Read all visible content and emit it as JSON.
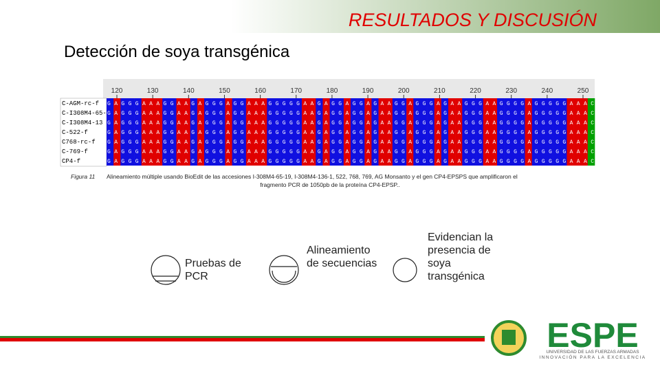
{
  "header": {
    "title": "RESULTADOS Y DISCUSIÓN",
    "subtitle": "Detección de soya transgénica"
  },
  "alignment": {
    "ruler": [
      "120",
      "130",
      "140",
      "150",
      "160",
      "170",
      "180",
      "190",
      "200",
      "210",
      "220",
      "230",
      "240",
      "250"
    ],
    "base_colors": {
      "A": "#e00000",
      "G": "#1010e0",
      "C": "#00a000",
      "T": "#000000"
    },
    "rows": [
      {
        "name": "C-AGM-rc-f",
        "sequence": "GAGGGAAAGGAAGAGGGAGGAAAGGGGGAAGAGGAGGAGAAGGAGGGAGAAGGGAAGGGGAGGGGGAAAC"
      },
      {
        "name": "C-I308M4-65-",
        "sequence": "GAGGGAAAGGAAGAGGGAGGAAAGGGGGAAGAGGAGGAGAAGGAGGGAGAAGGGAAGGGGAGGGGGAAAC"
      },
      {
        "name": "C-I308M4-13",
        "sequence": "GAGGGAAAGGAAGAGGGAGGAAAGGGGGAAGAGGAGGAGAAGGAGGGAGAAGGGAAGGGGAGGGGGAAAC"
      },
      {
        "name": "C-522-f",
        "sequence": "GAGGGAAAGGAAGAGGGAGGAAAGGGGGAAGAGGAGGAGAAGGAGGGAGAAGGGAAGGGGAGGGGGAAAC"
      },
      {
        "name": "C768-rc-f",
        "sequence": "GAGGGAAAGGAAGAGGGAGGAAAGGGGGAAGAGGAGGAGAAGGAGGGAGAAGGGAAGGGGAGGGGGAAAC"
      },
      {
        "name": "C-769-f",
        "sequence": "GAGGGAAAGGAAGAGGGAGGAAAGGGGGAAGAGGAGGAGAAGGAGGGAGAAGGGAAGGGGAGGGGGAAAC"
      },
      {
        "name": "CP4-f",
        "sequence": "GAGGGAAAGGAAGAGGGAGGAAAGGGGGAAGAGGAGGAGAAGGAGGGAGAAGGGAAGGGGAGGGGGAAAC"
      }
    ]
  },
  "caption": {
    "label": "Figura 11",
    "text": "Alineamiento múltiple usando BioEdit de las accesiones I-308M4-65-19, I-308M4-136-1, 522, 768, 769, AG Monsanto y el gen CP4-EPSPS que amplificaron el",
    "text2": "fragmento PCR de 1050pb de la proteína CP4-EPSP.."
  },
  "steps": [
    {
      "label": "Pruebas de PCR"
    },
    {
      "label": "Alineamiento de secuencias"
    },
    {
      "label": "Evidencian la presencia de soya transgénica"
    }
  ],
  "logo": {
    "name": "ESPE",
    "line1": "UNIVERSIDAD DE LAS FUERZAS ARMADAS",
    "line2": "INNOVACIÓN PARA LA EXCELENCIA"
  }
}
